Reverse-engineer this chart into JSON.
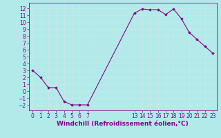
{
  "x": [
    0,
    1,
    2,
    3,
    4,
    5,
    6,
    7,
    13,
    14,
    15,
    16,
    17,
    18,
    19,
    20,
    21,
    22,
    23
  ],
  "y": [
    3,
    2,
    0.5,
    0.5,
    -1.5,
    -2,
    -2,
    -2,
    11.3,
    11.9,
    11.8,
    11.8,
    11.1,
    11.9,
    10.5,
    8.5,
    7.5,
    6.5,
    5.5
  ],
  "xticks": [
    0,
    1,
    2,
    3,
    4,
    5,
    6,
    7,
    13,
    14,
    15,
    16,
    17,
    18,
    19,
    20,
    21,
    22,
    23
  ],
  "yticks": [
    -2,
    -1,
    0,
    1,
    2,
    3,
    4,
    5,
    6,
    7,
    8,
    9,
    10,
    11,
    12
  ],
  "xlabel": "Windchill (Refroidissement éolien,°C)",
  "line_color": "#8b008b",
  "marker": "D",
  "marker_size": 1.8,
  "bg_color": "#b2eaea",
  "grid_color": "#c8e8e8",
  "ylim": [
    -2.8,
    12.8
  ],
  "xlim": [
    -0.5,
    23.5
  ],
  "tick_color": "#8b008b",
  "tick_fontsize": 5.5,
  "xlabel_fontsize": 6.5
}
